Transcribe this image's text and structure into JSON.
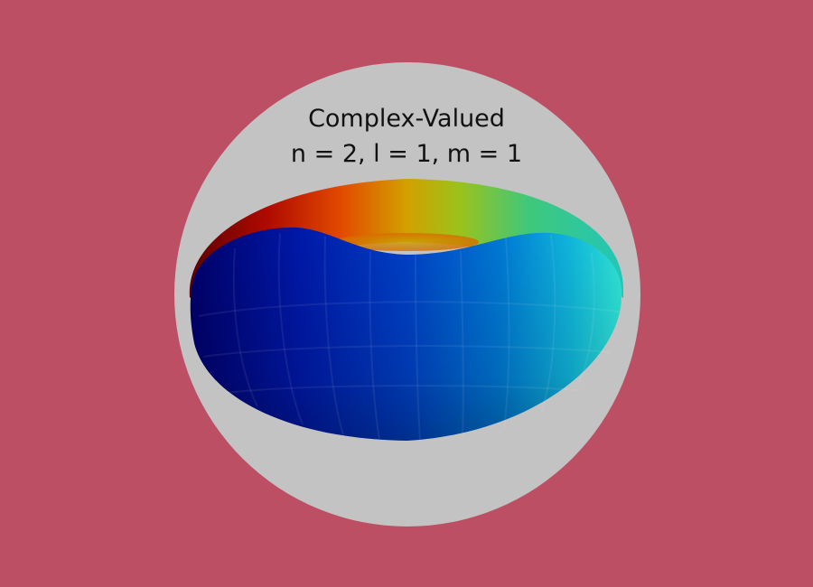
{
  "background_color": "#bd4f64",
  "disc_color": "#c3c3c3",
  "title": {
    "line1": "Complex-Valued",
    "line2": "n = 2, l = 1, m = 1"
  },
  "surface": {
    "shape": "torus",
    "colormap": [
      "#0000a0",
      "#0033cc",
      "#0088dd",
      "#22ddcc",
      "#88cc22",
      "#cccc00",
      "#ee6600",
      "#cc1100",
      "#880000"
    ]
  }
}
